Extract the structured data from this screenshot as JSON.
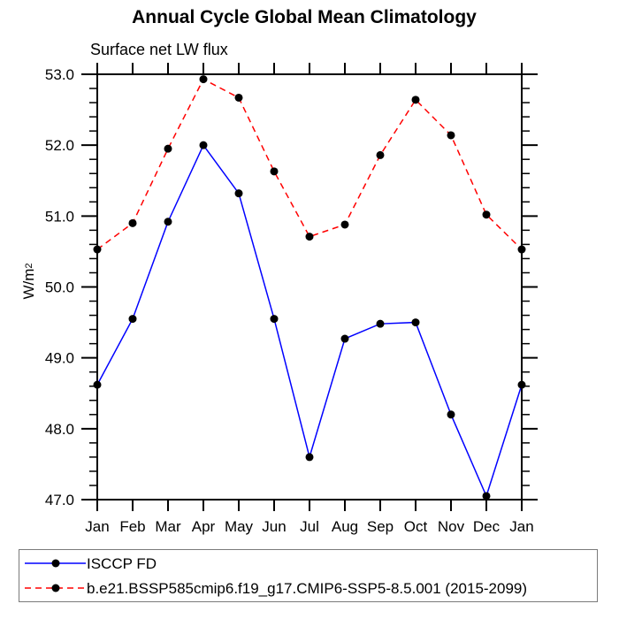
{
  "chart_data": {
    "type": "line",
    "title": "Annual Cycle Global Mean Climatology",
    "subtitle": "Surface net LW flux",
    "ylabel": "W/m^2",
    "ylabel_base": "W/m",
    "ylabel_exponent": "2",
    "categories": [
      "Jan",
      "Feb",
      "Mar",
      "Apr",
      "May",
      "Jun",
      "Jul",
      "Aug",
      "Sep",
      "Oct",
      "Nov",
      "Dec",
      "Jan"
    ],
    "ylim": [
      47.0,
      53.0
    ],
    "ytick_step": 1.0,
    "yminor_step": 0.2,
    "ytick_decimals": 1,
    "grid": false,
    "legend_position": "bottom",
    "axis_color": "#000000",
    "marker_color": "#000000",
    "series": [
      {
        "name": "ISCCP FD",
        "color": "#0000ff",
        "line_style": "solid",
        "marker": "filled-circle",
        "values": [
          48.62,
          49.55,
          50.92,
          52.0,
          51.32,
          49.55,
          47.6,
          49.27,
          49.48,
          49.5,
          48.2,
          47.05,
          48.62
        ]
      },
      {
        "name": "b.e21.BSSP585cmip6.f19_g17.CMIP6-SSP5-8.5.001 (2015-2099)",
        "color": "#ff0000",
        "line_style": "dashed",
        "marker": "filled-circle",
        "values": [
          50.53,
          50.9,
          51.95,
          52.93,
          52.67,
          51.63,
          50.71,
          50.88,
          51.86,
          52.64,
          52.14,
          51.02,
          50.53
        ]
      }
    ]
  }
}
